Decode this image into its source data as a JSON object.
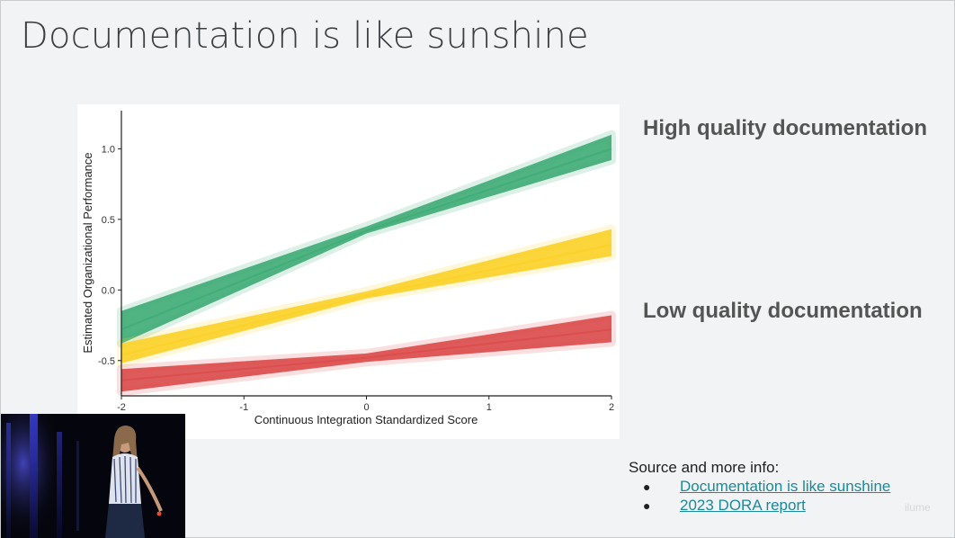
{
  "slide": {
    "title": "Documentation is like sunshine",
    "high_label": "High quality documentation",
    "low_label": "Low quality documentation",
    "source_text": "Source and more info:",
    "links": [
      {
        "bullet": "●",
        "text": "Documentation is like sunshine"
      },
      {
        "bullet": "●",
        "text": "2023 DORA report"
      }
    ],
    "watermark": "ilume"
  },
  "colors": {
    "green": "#41ad78",
    "yellow": "#fbd12a",
    "red": "#dc4e4e",
    "link": "#1a8a9c",
    "title": "#3c4043"
  },
  "chart_data": {
    "type": "line",
    "xlabel": "Continuous Integration Standardized Score",
    "ylabel": "Estimated Organizational Performance",
    "xlim": [
      -2,
      2
    ],
    "ylim": [
      -0.75,
      1.27
    ],
    "xticks": [
      -2,
      -1,
      0,
      1,
      2
    ],
    "yticks": [
      -0.5,
      0.0,
      0.5,
      1.0
    ],
    "xtick_labels": [
      "-2",
      "-1",
      "0",
      "1",
      "2"
    ],
    "ytick_labels": [
      "-0.5",
      "0.0",
      "0.5",
      "1.0"
    ],
    "grid": false,
    "series": [
      {
        "color": "green",
        "x": [
          -2,
          0,
          2
        ],
        "y": [
          -0.28,
          0.42,
          1.0
        ],
        "band_lower": [
          -0.38,
          0.4,
          0.92
        ],
        "band_upper": [
          -0.15,
          0.45,
          1.1
        ]
      },
      {
        "color": "yellow",
        "x": [
          -2,
          0,
          2
        ],
        "y": [
          -0.46,
          -0.04,
          0.32
        ],
        "band_lower": [
          -0.52,
          -0.06,
          0.24
        ],
        "band_upper": [
          -0.38,
          -0.01,
          0.43
        ]
      },
      {
        "color": "red",
        "x": [
          -2,
          0,
          2
        ],
        "y": [
          -0.64,
          -0.48,
          -0.28
        ],
        "band_lower": [
          -0.72,
          -0.51,
          -0.37
        ],
        "band_upper": [
          -0.56,
          -0.45,
          -0.18
        ]
      }
    ]
  }
}
